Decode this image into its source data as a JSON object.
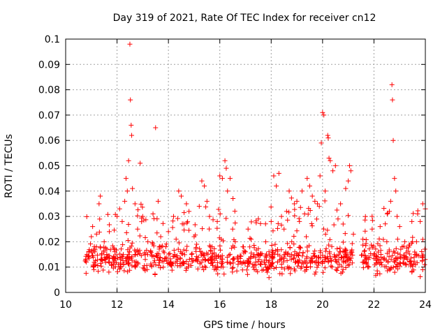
{
  "chart_data": {
    "type": "scatter",
    "title": "Day 319 of 2021, Rate Of TEC Index for receiver cn12",
    "xlabel": "GPS time / hours",
    "ylabel": "ROTI / TECUs",
    "xlim": [
      10,
      24
    ],
    "ylim": [
      0,
      0.1
    ],
    "xticks": [
      "10",
      "12",
      "14",
      "16",
      "18",
      "20",
      "22",
      "24"
    ],
    "yticks": [
      "0",
      "0.01",
      "0.02",
      "0.03",
      "0.04",
      "0.05",
      "0.06",
      "0.07",
      "0.08",
      "0.09",
      "0.1"
    ],
    "grid": true,
    "marker": "+",
    "color": "#ff0000",
    "series": [
      {
        "points": [
          [
            10.8,
            0.012
          ],
          [
            10.9,
            0.016
          ],
          [
            11.0,
            0.022
          ],
          [
            11.05,
            0.026
          ],
          [
            11.1,
            0.009
          ],
          [
            11.2,
            0.018
          ],
          [
            11.3,
            0.035
          ],
          [
            11.35,
            0.038
          ],
          [
            11.4,
            0.013
          ],
          [
            11.5,
            0.02
          ],
          [
            11.6,
            0.015
          ],
          [
            11.7,
            0.024
          ],
          [
            11.8,
            0.011
          ],
          [
            11.9,
            0.017
          ],
          [
            12.0,
            0.03
          ],
          [
            12.1,
            0.033
          ],
          [
            12.2,
            0.028
          ],
          [
            12.3,
            0.036
          ],
          [
            12.35,
            0.045
          ],
          [
            12.4,
            0.04
          ],
          [
            12.45,
            0.052
          ],
          [
            12.5,
            0.098
          ],
          [
            12.52,
            0.076
          ],
          [
            12.55,
            0.066
          ],
          [
            12.57,
            0.062
          ],
          [
            12.6,
            0.041
          ],
          [
            12.7,
            0.035
          ],
          [
            12.8,
            0.025
          ],
          [
            12.9,
            0.051
          ],
          [
            13.0,
            0.03
          ],
          [
            13.1,
            0.013
          ],
          [
            13.2,
            0.02
          ],
          [
            13.3,
            0.016
          ],
          [
            13.4,
            0.031
          ],
          [
            13.5,
            0.065
          ],
          [
            13.6,
            0.036
          ],
          [
            13.7,
            0.022
          ],
          [
            13.8,
            0.01
          ],
          [
            13.9,
            0.018
          ],
          [
            14.0,
            0.024
          ],
          [
            14.1,
            0.012
          ],
          [
            14.2,
            0.03
          ],
          [
            14.3,
            0.021
          ],
          [
            14.4,
            0.04
          ],
          [
            14.5,
            0.038
          ],
          [
            14.6,
            0.027
          ],
          [
            14.7,
            0.035
          ],
          [
            14.8,
            0.032
          ],
          [
            14.9,
            0.015
          ],
          [
            15.0,
            0.022
          ],
          [
            15.1,
            0.019
          ],
          [
            15.2,
            0.034
          ],
          [
            15.3,
            0.044
          ],
          [
            15.4,
            0.042
          ],
          [
            15.5,
            0.036
          ],
          [
            15.6,
            0.03
          ],
          [
            15.7,
            0.018
          ],
          [
            15.8,
            0.014
          ],
          [
            15.9,
            0.028
          ],
          [
            16.0,
            0.046
          ],
          [
            16.1,
            0.045
          ],
          [
            16.2,
            0.052
          ],
          [
            16.25,
            0.049
          ],
          [
            16.3,
            0.04
          ],
          [
            16.4,
            0.045
          ],
          [
            16.5,
            0.025
          ],
          [
            16.6,
            0.02
          ],
          [
            16.7,
            0.014
          ],
          [
            16.8,
            0.012
          ],
          [
            16.9,
            0.018
          ],
          [
            17.0,
            0.016
          ],
          [
            17.1,
            0.025
          ],
          [
            17.2,
            0.014
          ],
          [
            17.3,
            0.01
          ],
          [
            17.4,
            0.012
          ],
          [
            17.5,
            0.029
          ],
          [
            17.6,
            0.011
          ],
          [
            17.7,
            0.009
          ],
          [
            17.8,
            0.01
          ],
          [
            17.9,
            0.012
          ],
          [
            18.0,
            0.028
          ],
          [
            18.1,
            0.046
          ],
          [
            18.2,
            0.042
          ],
          [
            18.3,
            0.047
          ],
          [
            18.4,
            0.03
          ],
          [
            18.5,
            0.025
          ],
          [
            18.6,
            0.032
          ],
          [
            18.7,
            0.04
          ],
          [
            18.8,
            0.02
          ],
          [
            18.9,
            0.035
          ],
          [
            19.0,
            0.036
          ],
          [
            19.1,
            0.028
          ],
          [
            19.2,
            0.04
          ],
          [
            19.3,
            0.031
          ],
          [
            19.4,
            0.045
          ],
          [
            19.5,
            0.042
          ],
          [
            19.6,
            0.038
          ],
          [
            19.7,
            0.036
          ],
          [
            19.8,
            0.035
          ],
          [
            19.9,
            0.046
          ],
          [
            19.95,
            0.059
          ],
          [
            20.0,
            0.071
          ],
          [
            20.05,
            0.07
          ],
          [
            20.1,
            0.04
          ],
          [
            20.2,
            0.062
          ],
          [
            20.22,
            0.061
          ],
          [
            20.25,
            0.053
          ],
          [
            20.3,
            0.052
          ],
          [
            20.4,
            0.048
          ],
          [
            20.5,
            0.05
          ],
          [
            20.6,
            0.029
          ],
          [
            20.7,
            0.035
          ],
          [
            20.8,
            0.027
          ],
          [
            20.9,
            0.041
          ],
          [
            21.0,
            0.044
          ],
          [
            21.05,
            0.05
          ],
          [
            21.1,
            0.048
          ],
          [
            21.2,
            0.023
          ],
          [
            22.4,
            0.013
          ],
          [
            22.5,
            0.02
          ],
          [
            22.6,
            0.032
          ],
          [
            22.65,
            0.036
          ],
          [
            22.7,
            0.082
          ],
          [
            22.72,
            0.076
          ],
          [
            22.75,
            0.06
          ],
          [
            22.8,
            0.045
          ],
          [
            22.85,
            0.04
          ],
          [
            22.9,
            0.03
          ],
          [
            23.0,
            0.026
          ],
          [
            23.1,
            0.018
          ],
          [
            23.2,
            0.02
          ],
          [
            23.3,
            0.013
          ],
          [
            23.4,
            0.012
          ],
          [
            23.5,
            0.02
          ],
          [
            23.6,
            0.015
          ],
          [
            23.7,
            0.031
          ],
          [
            23.8,
            0.028
          ],
          [
            23.9,
            0.035
          ],
          [
            24.0,
            0.033
          ]
        ]
      }
    ],
    "background_band": {
      "segments": [
        [
          10.75,
          21.2
        ],
        [
          21.5,
          24.0
        ]
      ],
      "y_center": 0.013,
      "spread": 0.008,
      "density": 70
    }
  }
}
